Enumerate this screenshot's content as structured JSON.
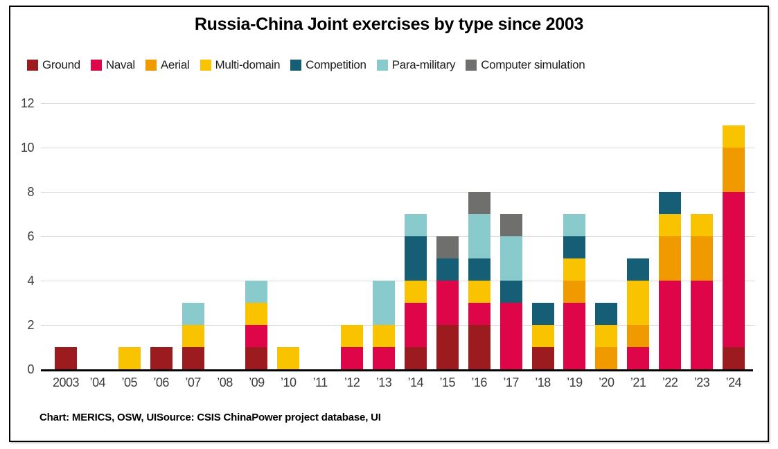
{
  "title": "Russia-China Joint exercises by type since 2003",
  "footer": "Chart: MERICS, OSW, UISource: CSIS ChinaPower project database, UI",
  "chart_data": {
    "type": "bar",
    "stacked": true,
    "title": "Russia-China Joint exercises by type since 2003",
    "xlabel": "",
    "ylabel": "",
    "ylim": [
      0,
      12
    ],
    "yticks": [
      0,
      2,
      4,
      6,
      8,
      10,
      12
    ],
    "grid": true,
    "legend_position": "top-left",
    "grid_color": "#d9d9d9",
    "categories": [
      "2003",
      "’04",
      "’05",
      "’06",
      "’07",
      "’08",
      "’09",
      "’10",
      "’11",
      "’12",
      "’13",
      "’14",
      "’15",
      "’16",
      "’17",
      "’18",
      "’19",
      "’20",
      "’21",
      "’22",
      "’23",
      "’24"
    ],
    "series": [
      {
        "name": "Ground",
        "color": "#9b1b1e",
        "values": [
          1,
          0,
          0,
          1,
          1,
          0,
          1,
          0,
          0,
          0,
          0,
          1,
          2,
          2,
          0,
          1,
          0,
          0,
          0,
          0,
          0,
          1
        ]
      },
      {
        "name": "Naval",
        "color": "#de0548",
        "values": [
          0,
          0,
          0,
          0,
          0,
          0,
          1,
          0,
          0,
          1,
          1,
          2,
          2,
          1,
          3,
          0,
          3,
          0,
          1,
          4,
          4,
          7
        ]
      },
      {
        "name": "Aerial",
        "color": "#f09a00",
        "values": [
          0,
          0,
          0,
          0,
          0,
          0,
          0,
          0,
          0,
          0,
          0,
          0,
          0,
          0,
          0,
          0,
          1,
          1,
          1,
          2,
          2,
          2
        ]
      },
      {
        "name": "Multi-domain",
        "color": "#f9c300",
        "values": [
          0,
          0,
          1,
          0,
          1,
          0,
          1,
          1,
          0,
          1,
          1,
          1,
          0,
          1,
          0,
          1,
          1,
          1,
          2,
          1,
          1,
          1
        ]
      },
      {
        "name": "Competition",
        "color": "#155e76",
        "values": [
          0,
          0,
          0,
          0,
          0,
          0,
          0,
          0,
          0,
          0,
          0,
          2,
          1,
          1,
          1,
          1,
          1,
          1,
          1,
          1,
          0,
          0
        ]
      },
      {
        "name": "Para-military",
        "color": "#89cacd",
        "values": [
          0,
          0,
          0,
          0,
          1,
          0,
          1,
          0,
          0,
          0,
          2,
          1,
          0,
          2,
          2,
          0,
          1,
          0,
          0,
          0,
          0,
          0
        ]
      },
      {
        "name": "Computer simulation",
        "color": "#6f6f6e",
        "values": [
          0,
          0,
          0,
          0,
          0,
          0,
          0,
          0,
          0,
          0,
          0,
          0,
          1,
          1,
          1,
          0,
          0,
          0,
          0,
          0,
          0,
          0
        ]
      }
    ],
    "totals": [
      1,
      0,
      1,
      1,
      3,
      0,
      4,
      1,
      0,
      2,
      4,
      7,
      6,
      8,
      7,
      3,
      7,
      3,
      5,
      8,
      7,
      11
    ]
  }
}
